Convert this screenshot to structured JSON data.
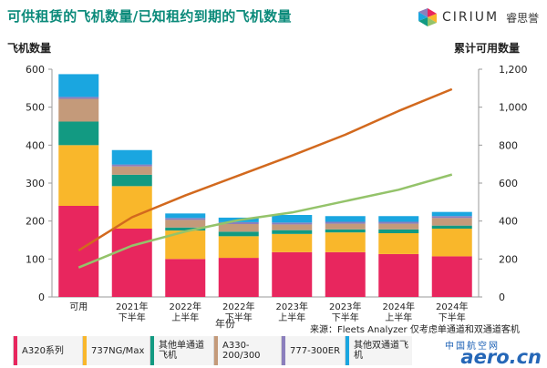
{
  "header": {
    "title": "可供租赁的飞机数量/已知租约到期的飞机数量",
    "brand_name": "CIRIUM",
    "brand_cn": "睿思誉"
  },
  "chart_data": {
    "type": "bar",
    "left_axis_label": "飞机数量",
    "right_axis_label": "累计可用数量",
    "xlabel": "年份",
    "categories": [
      "可用",
      "2021年\n下半年",
      "2022年\n上半年",
      "2022年\n下半年",
      "2023年\n上半年",
      "2023年\n下半年",
      "2024年\n上半年",
      "2024年\n下半年"
    ],
    "ylim": [
      0,
      600
    ],
    "yticks": [
      0,
      100,
      200,
      300,
      400,
      500,
      600
    ],
    "y2lim": [
      0,
      1200
    ],
    "y2ticks": [
      "0",
      "200",
      "400",
      "600",
      "800",
      "1,000",
      "1,200"
    ],
    "grid": false,
    "series": [
      {
        "name": "A320系列",
        "color": "#e8265e",
        "values": [
          240,
          180,
          100,
          103,
          118,
          118,
          113,
          107
        ]
      },
      {
        "name": "737NG/Max",
        "color": "#f9b72b",
        "values": [
          160,
          112,
          75,
          57,
          48,
          52,
          55,
          73
        ]
      },
      {
        "name": "其他单通道飞机",
        "color": "#129a82",
        "values": [
          62,
          30,
          8,
          12,
          10,
          8,
          10,
          8
        ]
      },
      {
        "name": "A330-200/300",
        "color": "#c49a7a",
        "values": [
          60,
          22,
          20,
          20,
          15,
          15,
          15,
          20
        ]
      },
      {
        "name": "777-300ER",
        "color": "#8b7fbd",
        "values": [
          5,
          5,
          5,
          5,
          5,
          5,
          5,
          5
        ]
      },
      {
        "name": "其他双通道飞机",
        "color": "#1aa6e0",
        "values": [
          60,
          38,
          12,
          12,
          20,
          15,
          15,
          11
        ]
      }
    ],
    "lines": [
      {
        "color": "#d2691e",
        "axis": "right",
        "values": [
          245,
          420,
          535,
          640,
          745,
          855,
          980,
          1095
        ]
      },
      {
        "color": "#94c36a",
        "axis": "right",
        "values": [
          155,
          270,
          345,
          405,
          445,
          505,
          565,
          645
        ]
      }
    ],
    "source": "来源：Fleets Analyzer 仅考虑单通道和双通道客机"
  },
  "legend": [
    {
      "label": "A320系列",
      "color": "#e8265e"
    },
    {
      "label": "737NG/Max",
      "color": "#f9b72b"
    },
    {
      "label": "其他单通道飞机",
      "color": "#129a82"
    },
    {
      "label": "A330-200/300",
      "color": "#c49a7a"
    },
    {
      "label": "777-300ER",
      "color": "#8b7fbd"
    },
    {
      "label": "其他双通道飞机",
      "color": "#1aa6e0"
    }
  ],
  "watermark": {
    "text": "aero.cn",
    "cn": "中国航空网"
  }
}
